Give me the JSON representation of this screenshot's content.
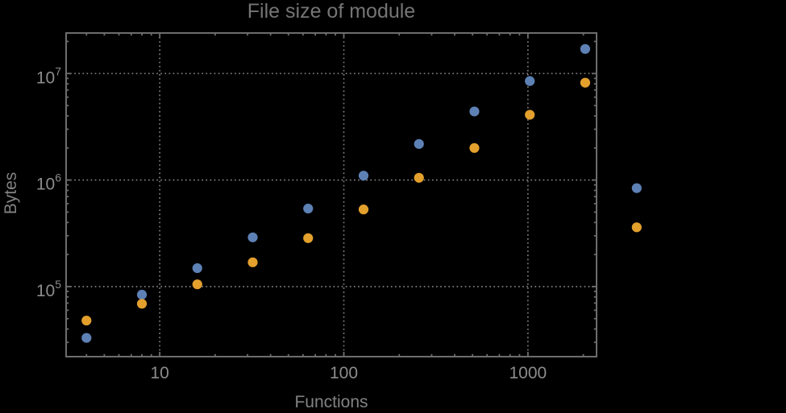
{
  "chart_data": {
    "type": "scatter",
    "title": "File size of module",
    "xlabel": "Functions",
    "ylabel": "Bytes",
    "x_scale": "log",
    "y_scale": "log",
    "xlim": [
      3.1,
      2360
    ],
    "ylim": [
      22000,
      24000000
    ],
    "x_ticks": [
      10,
      100,
      1000
    ],
    "x_tick_labels": [
      "10",
      "100",
      "1000"
    ],
    "y_ticks": [
      100000,
      1000000,
      10000000
    ],
    "y_tick_labels": [
      {
        "base": "10",
        "exp": "5"
      },
      {
        "base": "10",
        "exp": "6"
      },
      {
        "base": "10",
        "exp": "7"
      }
    ],
    "grid": "dotted-at-major-ticks",
    "legend_position": "none",
    "x": [
      4,
      8,
      16,
      32,
      64,
      128,
      256,
      512,
      1024,
      2048,
      3900
    ],
    "series": [
      {
        "name": "series-1-blue",
        "color": "#5E81B5",
        "values": [
          33000,
          84000,
          149000,
          290000,
          540000,
          1100000,
          2180000,
          4400000,
          8500000,
          17000000,
          840000
        ]
      },
      {
        "name": "series-2-orange",
        "color": "#E3A02D",
        "values": [
          48000,
          69000,
          105000,
          169000,
          285000,
          530000,
          1050000,
          2000000,
          4100000,
          8200000,
          360000
        ]
      }
    ]
  },
  "style": {
    "background_color": "#000000",
    "frame_color": "#6d6d6d",
    "grid_color": "#7d7d7d",
    "tick_label_color": "#8c8c8c",
    "title_color": "#757575",
    "axis_label_color": "#828282"
  }
}
